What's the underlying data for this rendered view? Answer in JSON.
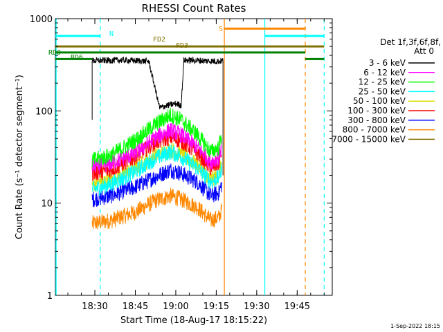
{
  "chart_data": {
    "type": "line",
    "title": "RHESSI Count Rates",
    "xlabel": "Start Time (18-Aug-17 18:15:22)",
    "ylabel": "Count Rate (s⁻¹ detector segment⁻¹)",
    "y_scale": "log",
    "ylim": [
      1,
      1000
    ],
    "xlim": [
      "18:15:22",
      "19:58:00"
    ],
    "x_ticks": [
      "18:30",
      "18:45",
      "19:00",
      "19:15",
      "19:30",
      "19:45"
    ],
    "y_ticks": [
      "1",
      "10",
      "100",
      "1000"
    ],
    "legend": {
      "placement": "right",
      "header": [
        "Det 1f,3f,6f,8f,",
        "Att 0"
      ]
    },
    "series": [
      {
        "name": "3 - 6 keV",
        "color": "#000000",
        "points": [
          [
            "18:29:00",
            350
          ],
          [
            "18:40:00",
            355
          ],
          [
            "18:50:00",
            345
          ],
          [
            "18:54:00",
            108
          ],
          [
            "18:57:00",
            115
          ],
          [
            "19:00:00",
            120
          ],
          [
            "19:02:00",
            115
          ],
          [
            "19:03:00",
            355
          ],
          [
            "19:10:00",
            350
          ],
          [
            "19:16:00",
            345
          ],
          [
            "19:17:30",
            350
          ]
        ]
      },
      {
        "name": "6 - 12 keV",
        "color": "#ff00ff",
        "points": [
          [
            "18:29:00",
            25
          ],
          [
            "18:36:00",
            27
          ],
          [
            "18:45:00",
            35
          ],
          [
            "18:52:00",
            50
          ],
          [
            "18:58:00",
            62
          ],
          [
            "19:02:00",
            55
          ],
          [
            "19:08:00",
            40
          ],
          [
            "19:13:00",
            28
          ],
          [
            "19:16:00",
            31
          ],
          [
            "19:17:00",
            42
          ]
        ]
      },
      {
        "name": "12 - 25 keV",
        "color": "#00ff00",
        "points": [
          [
            "18:29:00",
            29
          ],
          [
            "18:36:00",
            33
          ],
          [
            "18:45:00",
            48
          ],
          [
            "18:52:00",
            70
          ],
          [
            "18:58:00",
            90
          ],
          [
            "19:02:00",
            80
          ],
          [
            "19:08:00",
            55
          ],
          [
            "19:13:00",
            36
          ],
          [
            "19:16:00",
            40
          ],
          [
            "19:17:00",
            55
          ]
        ]
      },
      {
        "name": "25 - 50 keV",
        "color": "#00ffff",
        "points": [
          [
            "18:29:00",
            14
          ],
          [
            "18:36:00",
            16
          ],
          [
            "18:45:00",
            22
          ],
          [
            "18:52:00",
            30
          ],
          [
            "18:58:00",
            36
          ],
          [
            "19:02:00",
            32
          ],
          [
            "19:08:00",
            24
          ],
          [
            "19:13:00",
            17
          ],
          [
            "19:16:00",
            19
          ],
          [
            "19:17:00",
            24
          ]
        ]
      },
      {
        "name": "50 - 100 keV",
        "color": "#dddd00",
        "points": [
          [
            "18:29:00",
            16
          ],
          [
            "18:36:00",
            18
          ],
          [
            "18:45:00",
            24
          ],
          [
            "18:52:00",
            32
          ],
          [
            "18:58:00",
            38
          ],
          [
            "19:02:00",
            34
          ],
          [
            "19:08:00",
            26
          ],
          [
            "19:13:00",
            18
          ],
          [
            "19:16:00",
            20
          ],
          [
            "19:17:00",
            26
          ]
        ]
      },
      {
        "name": "100 - 300 keV",
        "color": "#ff0000",
        "points": [
          [
            "18:29:00",
            21
          ],
          [
            "18:36:00",
            23
          ],
          [
            "18:45:00",
            32
          ],
          [
            "18:52:00",
            45
          ],
          [
            "18:58:00",
            52
          ],
          [
            "19:02:00",
            47
          ],
          [
            "19:08:00",
            35
          ],
          [
            "19:13:00",
            24
          ],
          [
            "19:16:00",
            27
          ],
          [
            "19:17:00",
            36
          ]
        ]
      },
      {
        "name": "300 - 800 keV",
        "color": "#0000ff",
        "points": [
          [
            "18:29:00",
            11
          ],
          [
            "18:36:00",
            12
          ],
          [
            "18:45:00",
            15
          ],
          [
            "18:52:00",
            19
          ],
          [
            "18:58:00",
            23
          ],
          [
            "19:02:00",
            21
          ],
          [
            "19:08:00",
            17
          ],
          [
            "19:13:00",
            12
          ],
          [
            "19:16:00",
            13
          ],
          [
            "19:17:00",
            16
          ]
        ]
      },
      {
        "name": "800 - 7000 keV",
        "color": "#ff8800",
        "points": [
          [
            "18:29:00",
            6
          ],
          [
            "18:36:00",
            6.5
          ],
          [
            "18:45:00",
            8
          ],
          [
            "18:52:00",
            10.5
          ],
          [
            "18:58:00",
            12
          ],
          [
            "19:02:00",
            11
          ],
          [
            "19:08:00",
            9
          ],
          [
            "19:13:00",
            6.5
          ],
          [
            "19:16:00",
            7
          ],
          [
            "19:17:00",
            8.5
          ]
        ]
      },
      {
        "name": "7000 - 15000 keV",
        "color": "#807000",
        "points": []
      }
    ],
    "annotations": [
      {
        "label": "N",
        "color": "#00ffff",
        "level": 650,
        "start": "18:15:22",
        "end": "18:32:00"
      },
      {
        "label": "",
        "color": "#00ffff",
        "level": 650,
        "start": "19:33:00",
        "end": "19:55:00"
      },
      {
        "label": "S",
        "color": "#ff8800",
        "level": 780,
        "start": "19:18:00",
        "end": "19:48:00"
      },
      {
        "label": "FD2",
        "color": "#807000",
        "level": 500,
        "start": "18:15:22",
        "end": "19:55:00"
      },
      {
        "label": "FD3",
        "color": "#807000",
        "level": 500,
        "start": "18:15:22",
        "end": "19:55:00"
      },
      {
        "label": "RD0",
        "color": "#008000",
        "level": 430,
        "start": "18:15:22",
        "end": "18:44:00"
      },
      {
        "label": "",
        "color": "#008000",
        "level": 430,
        "start": "18:44:00",
        "end": "19:48:00"
      },
      {
        "label": "RD6",
        "color": "#008000",
        "level": 365,
        "start": "18:15:22",
        "end": "18:29:00"
      },
      {
        "label": "",
        "color": "#008000",
        "level": 365,
        "start": "19:48:00",
        "end": "19:55:00"
      }
    ],
    "vertical_markers": [
      {
        "time": "18:32:00",
        "color": "#00ffff",
        "style": "dashed"
      },
      {
        "time": "19:33:00",
        "color": "#00ffff",
        "style": "solid"
      },
      {
        "time": "19:48:00",
        "color": "#ff8800",
        "style": "dashed"
      },
      {
        "time": "19:55:00",
        "color": "#00ffff",
        "style": "dashed"
      },
      {
        "time": "19:18:00",
        "color": "#ff8800",
        "style": "solid"
      }
    ],
    "footer_date": "1-Sep-2022 18:15"
  }
}
